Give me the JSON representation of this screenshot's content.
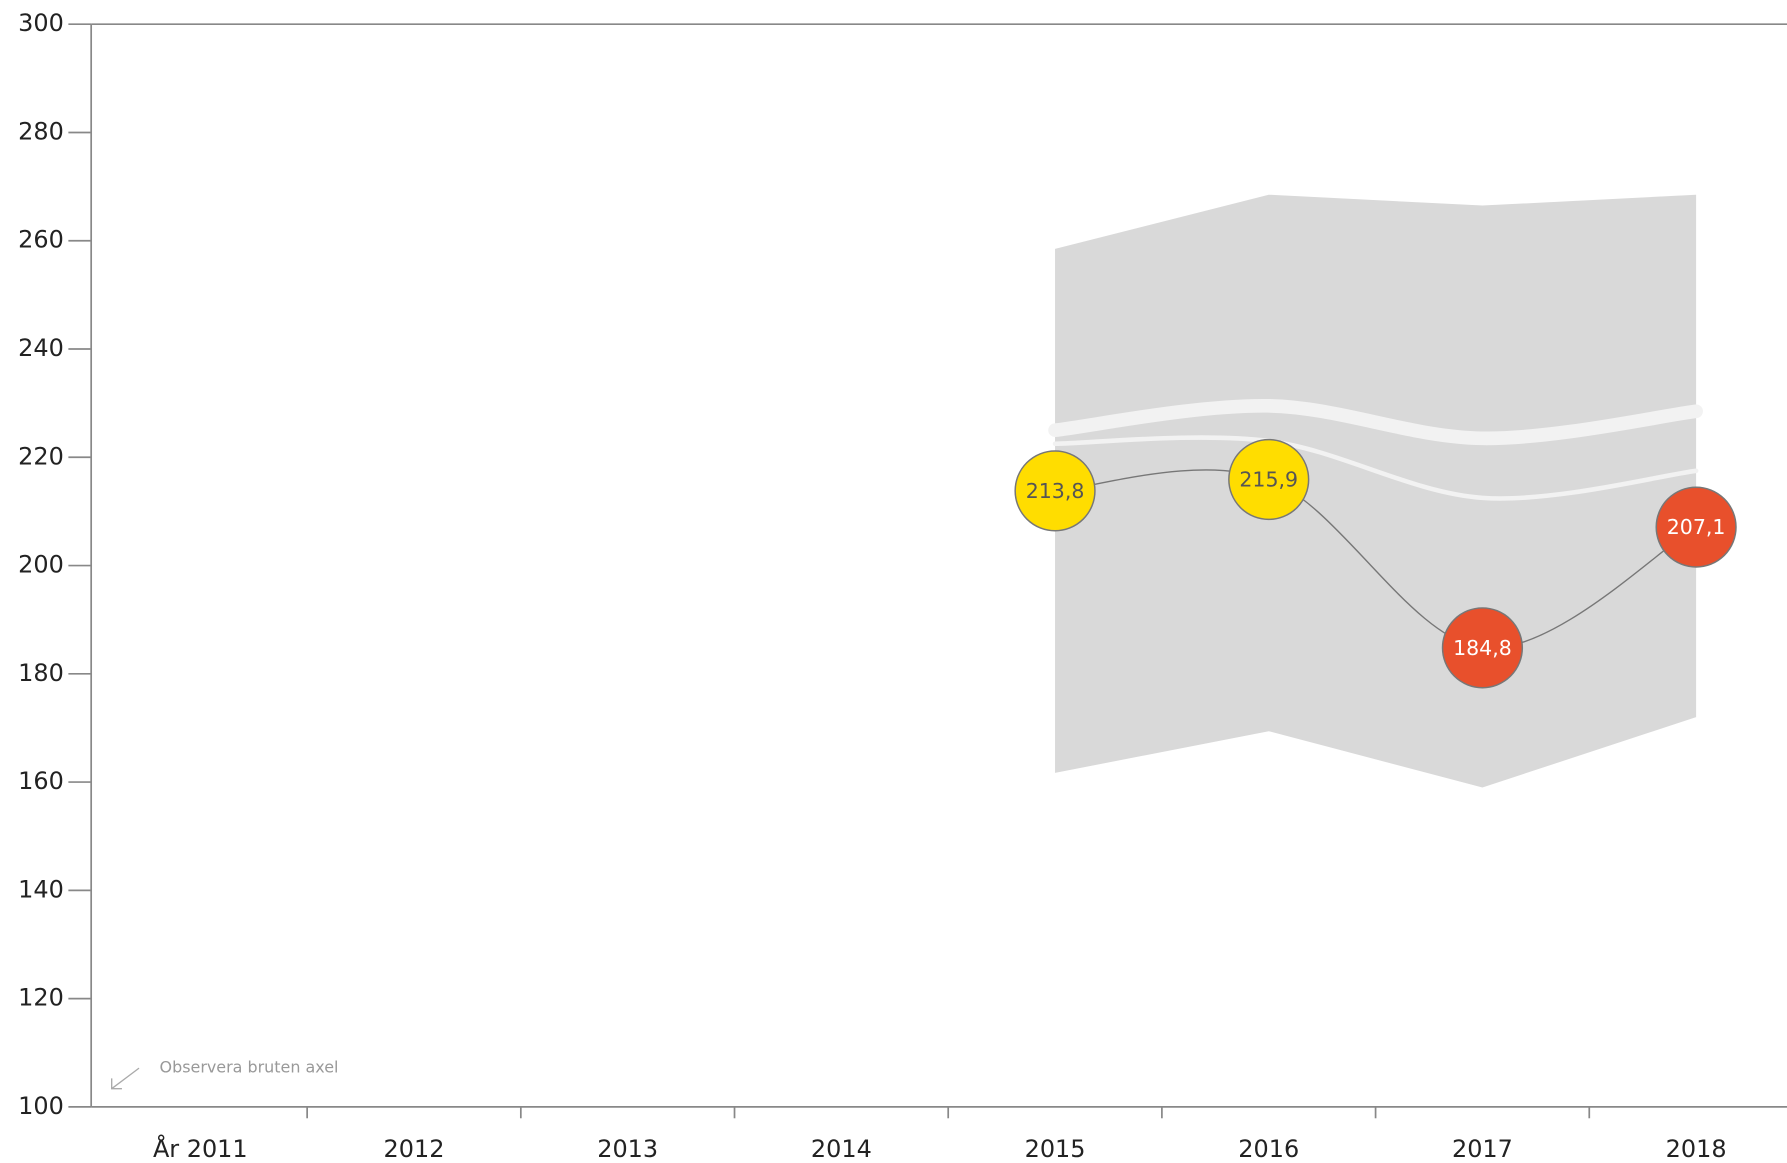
{
  "chart_data": {
    "type": "line",
    "categories": [
      "År 2011",
      "2012",
      "2013",
      "2014",
      "2015",
      "2016",
      "2017",
      "2018"
    ],
    "ylim": [
      100,
      300
    ],
    "yticks": [
      100,
      120,
      140,
      160,
      180,
      200,
      220,
      240,
      260,
      280,
      300
    ],
    "band": {
      "color": "#d9d9d9",
      "upper": [
        null,
        null,
        null,
        null,
        258.5,
        268.5,
        266.5,
        268.5
      ],
      "lower": [
        null,
        null,
        null,
        null,
        161.7,
        169.4,
        159,
        172
      ]
    },
    "reference_lines": [
      {
        "color": "#f2f2f2",
        "width": 12,
        "values": [
          null,
          null,
          null,
          null,
          225,
          229.5,
          223.5,
          228.5
        ]
      },
      {
        "color": "#f2f2f2",
        "width": 4,
        "values": [
          null,
          null,
          null,
          null,
          222.5,
          223,
          212.5,
          217.5
        ]
      }
    ],
    "series": [
      {
        "color": "#777777",
        "values": [
          null,
          null,
          null,
          null,
          213.8,
          215.9,
          184.8,
          207.1
        ],
        "value_labels": [
          null,
          null,
          null,
          null,
          "213,8",
          "215,9",
          "184,8",
          "207,1"
        ],
        "point_colors": [
          null,
          null,
          null,
          null,
          "#ffdd00",
          "#ffdd00",
          "#e8502c",
          "#e8502c"
        ],
        "label_colors": [
          null,
          null,
          null,
          null,
          "#555555",
          "#555555",
          "#ffffff",
          "#ffffff"
        ]
      }
    ],
    "annotation": "Observera bruten axel"
  }
}
